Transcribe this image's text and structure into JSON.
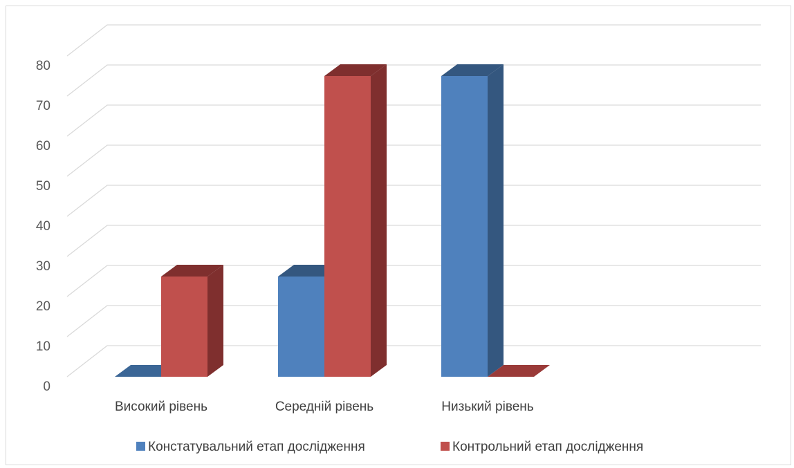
{
  "chart_data": {
    "type": "bar",
    "style": "3d-clustered-column",
    "categories": [
      "Високий рівень",
      "Середній рівень",
      "Низький рівень"
    ],
    "series": [
      {
        "name": "Констатувальний етап дослідження",
        "values": [
          0,
          25,
          75
        ],
        "color": "#4f81bd",
        "side_color": "#34577f",
        "top_color": "#3b6696"
      },
      {
        "name": "Контрольний етап дослідження",
        "values": [
          25,
          75,
          0
        ],
        "color": "#c0504d",
        "side_color": "#7f2f2e",
        "top_color": "#9a3a38"
      }
    ],
    "ylim": [
      0,
      80
    ],
    "yticks": [
      "0",
      "10",
      "20",
      "30",
      "40",
      "50",
      "60",
      "70",
      "80"
    ],
    "grid": true,
    "legend_position": "bottom",
    "title": "",
    "xlabel": "",
    "ylabel": ""
  }
}
